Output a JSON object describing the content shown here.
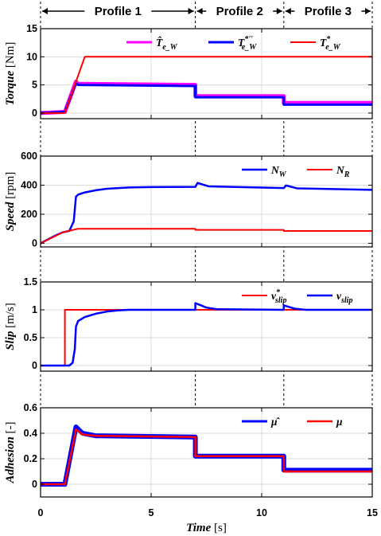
{
  "figure": {
    "profiles": [
      {
        "label": "Profile 1",
        "start": 0,
        "end": 7
      },
      {
        "label": "Profile 2",
        "start": 7,
        "end": 11
      },
      {
        "label": "Profile 3",
        "start": 11,
        "end": 15
      }
    ],
    "xlabel": {
      "name": "Time",
      "unit": " [s]"
    },
    "xticks": [
      0,
      5,
      10,
      15
    ],
    "xlim": [
      0,
      15
    ]
  },
  "chart_data": [
    {
      "type": "line",
      "ylabel": {
        "name": "Torque",
        "unit": " [Nm]"
      },
      "ylim": [
        -1,
        15
      ],
      "yticks": [
        0,
        5,
        10,
        15
      ],
      "grid": true,
      "legend_placement": "top-right",
      "series": [
        {
          "name": "T̂e_W",
          "legend": {
            "base": "T̂",
            "sub": "e_W",
            "sup": ""
          },
          "color": "#ff00ff",
          "width": 5,
          "x": [
            0,
            1.1,
            1.6,
            1.7,
            7.0,
            7.0,
            11.0,
            11.0,
            15
          ],
          "y": [
            0,
            0.2,
            5.6,
            5.2,
            5.0,
            3.0,
            3.0,
            1.8,
            1.8
          ]
        },
        {
          "name": "T*''e_W",
          "legend": {
            "base": "T",
            "sub": "e_W",
            "sup": "*''"
          },
          "color": "#0000ff",
          "width": 3,
          "x": [
            0,
            1.1,
            1.6,
            1.7,
            7.0,
            7.0,
            11.0,
            11.0,
            15
          ],
          "y": [
            0,
            0.2,
            5.3,
            5.0,
            4.8,
            2.8,
            2.8,
            1.5,
            1.5
          ]
        },
        {
          "name": "T*e_W",
          "legend": {
            "base": "T",
            "sub": "e_W",
            "sup": "*"
          },
          "color": "#ff0000",
          "width": 2,
          "x": [
            0,
            1.1,
            2.0,
            15
          ],
          "y": [
            0,
            0,
            10,
            10
          ]
        }
      ]
    },
    {
      "type": "line",
      "ylabel": {
        "name": "Speed",
        "unit": " [rpm]"
      },
      "ylim": [
        -25,
        600
      ],
      "yticks": [
        0,
        200,
        400,
        600
      ],
      "grid": true,
      "legend_placement": "top-right",
      "series": [
        {
          "name": "NW",
          "legend": {
            "base": "N",
            "sub": "W",
            "sup": ""
          },
          "color": "#0000ff",
          "width": 2.5,
          "x": [
            0,
            0.7,
            1.0,
            1.3,
            1.5,
            1.6,
            1.7,
            2.0,
            2.5,
            3.0,
            4.0,
            5.0,
            7.0,
            7.1,
            7.6,
            11.0,
            11.1,
            11.6,
            15
          ],
          "y": [
            0,
            55,
            75,
            85,
            150,
            320,
            335,
            350,
            365,
            375,
            384,
            387,
            388,
            415,
            392,
            380,
            398,
            378,
            368
          ]
        },
        {
          "name": "NR",
          "legend": {
            "base": "N",
            "sub": "R",
            "sup": ""
          },
          "color": "#ff0000",
          "width": 2,
          "x": [
            0,
            0.6,
            1.0,
            1.7,
            7.0,
            7.0,
            11.0,
            11.0,
            15
          ],
          "y": [
            0,
            45,
            75,
            100,
            100,
            92,
            92,
            85,
            85
          ]
        }
      ]
    },
    {
      "type": "line",
      "ylabel": {
        "name": "Slip",
        "unit": " [m/s]"
      },
      "ylim": [
        -0.1,
        1.5
      ],
      "yticks": [
        0,
        0.5,
        1,
        1.5
      ],
      "grid": true,
      "legend_placement": "top-right",
      "series": [
        {
          "name": "v*slip",
          "legend": {
            "base": "v",
            "sub": "slip",
            "sup": "*"
          },
          "color": "#ff0000",
          "width": 2,
          "x": [
            0,
            1.1,
            1.1,
            15
          ],
          "y": [
            0,
            0,
            1,
            1
          ]
        },
        {
          "name": "vslip",
          "legend": {
            "base": "v",
            "sub": "slip",
            "sup": ""
          },
          "color": "#0000ff",
          "width": 2.5,
          "x": [
            0,
            1.3,
            1.45,
            1.55,
            1.6,
            1.7,
            2.0,
            2.5,
            3.0,
            3.5,
            4.0,
            7.0,
            7.0,
            7.5,
            8.0,
            11.0,
            11.0,
            11.5,
            12.0,
            15
          ],
          "y": [
            0,
            0,
            0.05,
            0.3,
            0.7,
            0.8,
            0.87,
            0.93,
            0.97,
            0.99,
            1.0,
            1.0,
            1.12,
            1.04,
            1.01,
            1.0,
            1.08,
            1.02,
            1.0,
            1.0
          ]
        }
      ]
    },
    {
      "type": "line",
      "ylabel": {
        "name": "Adhesion",
        "unit": " [-]"
      },
      "ylim": [
        -0.1,
        0.6
      ],
      "yticks": [
        0,
        0.2,
        0.4,
        0.6
      ],
      "grid": true,
      "legend_placement": "top-right",
      "series": [
        {
          "name": "μ̂",
          "legend": {
            "base": "μ̂",
            "sub": "",
            "sup": ""
          },
          "color": "#0000ff",
          "width": 6,
          "x": [
            0,
            1.1,
            1.6,
            1.9,
            2.5,
            7.0,
            7.0,
            11.0,
            11.0,
            15
          ],
          "y": [
            0,
            0,
            0.45,
            0.4,
            0.38,
            0.37,
            0.22,
            0.22,
            0.11,
            0.11
          ]
        },
        {
          "name": "μ",
          "legend": {
            "base": "μ",
            "sub": "",
            "sup": ""
          },
          "color": "#ff0000",
          "width": 2.5,
          "x": [
            0,
            1.1,
            1.6,
            1.9,
            2.5,
            7.0,
            7.0,
            11.0,
            11.0,
            15
          ],
          "y": [
            0,
            0,
            0.43,
            0.39,
            0.38,
            0.37,
            0.22,
            0.22,
            0.1,
            0.1
          ]
        }
      ]
    }
  ]
}
